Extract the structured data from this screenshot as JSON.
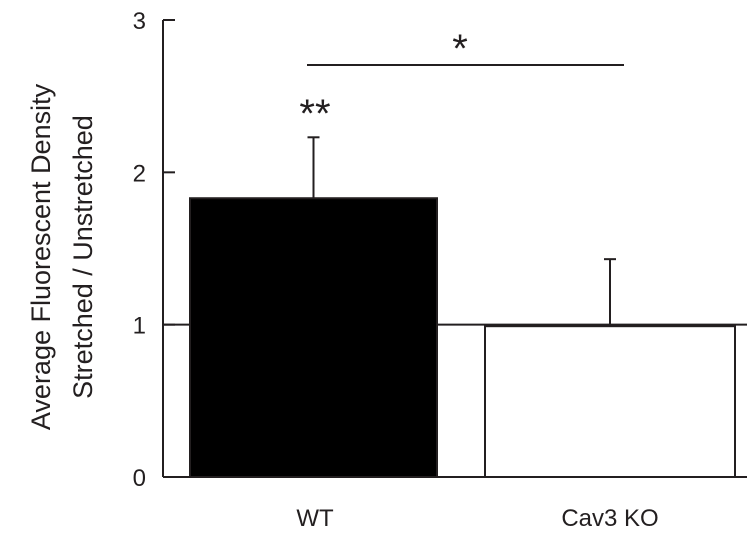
{
  "chart_data": {
    "type": "bar",
    "categories": [
      "WT",
      "Cav3 KO"
    ],
    "values": [
      1.83,
      0.99
    ],
    "error_upper": [
      0.4,
      0.44
    ],
    "bar_colors": [
      "#000000",
      "#ffffff"
    ],
    "ylabel_lines": [
      "Average Fluorescent Density",
      "Stretched / Unstretched"
    ],
    "xlabel": "",
    "ylim": [
      0,
      3
    ],
    "yticks": [
      "0",
      "1",
      "2",
      "3"
    ],
    "reference_line": 1,
    "grid": false,
    "annotations": {
      "wt_significance": "**",
      "comparison_significance": "*"
    }
  }
}
